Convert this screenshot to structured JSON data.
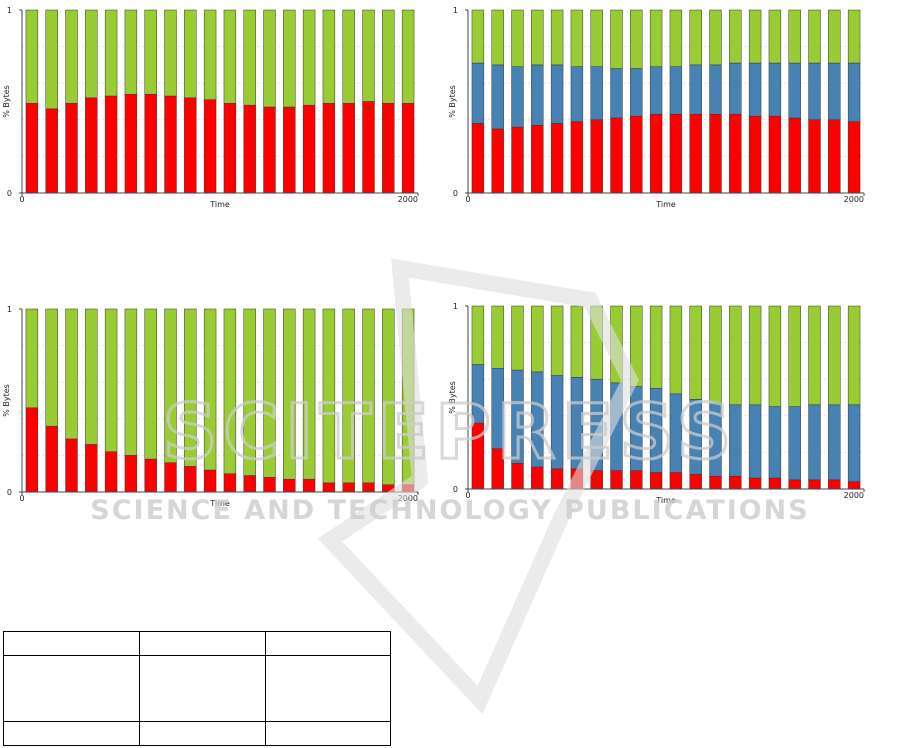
{
  "watermark": {
    "title": "SCITEPRESS",
    "subtitle": "SCIENCE AND TECHNOLOGY PUBLICATIONS"
  },
  "chart_data": [
    {
      "type": "bar",
      "stacked": true,
      "x_label": "Time",
      "y_label": "% Bytes",
      "x": [
        50,
        150,
        250,
        350,
        450,
        550,
        650,
        750,
        850,
        950,
        1050,
        1150,
        1250,
        1350,
        1450,
        1550,
        1650,
        1750,
        1850,
        1950
      ],
      "xlim": [
        0,
        2000
      ],
      "xticks": [
        0,
        2000
      ],
      "ylim": [
        0,
        1
      ],
      "yticks": [
        0,
        1
      ],
      "series": [
        {
          "color": "#ff0000",
          "values": [
            0.49,
            0.46,
            0.49,
            0.52,
            0.53,
            0.54,
            0.54,
            0.53,
            0.52,
            0.51,
            0.49,
            0.48,
            0.47,
            0.47,
            0.48,
            0.49,
            0.49,
            0.5,
            0.49,
            0.49
          ]
        },
        {
          "color": "#99cc33",
          "values": [
            0.51,
            0.54,
            0.51,
            0.48,
            0.47,
            0.46,
            0.46,
            0.47,
            0.48,
            0.49,
            0.51,
            0.52,
            0.53,
            0.53,
            0.52,
            0.51,
            0.51,
            0.5,
            0.51,
            0.51
          ]
        }
      ]
    },
    {
      "type": "bar",
      "stacked": true,
      "x_label": "Time",
      "y_label": "% Bytes",
      "x": [
        50,
        150,
        250,
        350,
        450,
        550,
        650,
        750,
        850,
        950,
        1050,
        1150,
        1250,
        1350,
        1450,
        1550,
        1650,
        1750,
        1850,
        1950
      ],
      "xlim": [
        0,
        2000
      ],
      "xticks": [
        0,
        2000
      ],
      "ylim": [
        0,
        1
      ],
      "yticks": [
        0,
        1
      ],
      "series": [
        {
          "color": "#ff0000",
          "values": [
            0.38,
            0.35,
            0.36,
            0.37,
            0.38,
            0.39,
            0.4,
            0.41,
            0.42,
            0.43,
            0.43,
            0.43,
            0.43,
            0.43,
            0.42,
            0.42,
            0.41,
            0.4,
            0.4,
            0.39
          ]
        },
        {
          "color": "#4682b4",
          "values": [
            0.33,
            0.35,
            0.33,
            0.33,
            0.32,
            0.3,
            0.29,
            0.27,
            0.26,
            0.26,
            0.26,
            0.27,
            0.27,
            0.28,
            0.29,
            0.29,
            0.3,
            0.31,
            0.31,
            0.32
          ]
        },
        {
          "color": "#99cc33",
          "values": [
            0.29,
            0.3,
            0.31,
            0.3,
            0.3,
            0.31,
            0.31,
            0.32,
            0.32,
            0.31,
            0.31,
            0.3,
            0.3,
            0.29,
            0.29,
            0.29,
            0.29,
            0.29,
            0.29,
            0.29
          ]
        }
      ]
    },
    {
      "type": "bar",
      "stacked": true,
      "x_label": "Time",
      "y_label": "% Bytes",
      "x": [
        50,
        150,
        250,
        350,
        450,
        550,
        650,
        750,
        850,
        950,
        1050,
        1150,
        1250,
        1350,
        1450,
        1550,
        1650,
        1750,
        1850,
        1950
      ],
      "xlim": [
        0,
        2000
      ],
      "xticks": [
        0,
        2000
      ],
      "ylim": [
        0,
        1
      ],
      "yticks": [
        0,
        1
      ],
      "series": [
        {
          "color": "#ff0000",
          "values": [
            0.46,
            0.36,
            0.29,
            0.26,
            0.22,
            0.2,
            0.18,
            0.16,
            0.14,
            0.12,
            0.1,
            0.09,
            0.08,
            0.07,
            0.07,
            0.05,
            0.05,
            0.05,
            0.04,
            0.04
          ]
        },
        {
          "color": "#99cc33",
          "values": [
            0.54,
            0.64,
            0.71,
            0.74,
            0.78,
            0.8,
            0.82,
            0.84,
            0.86,
            0.88,
            0.9,
            0.91,
            0.92,
            0.93,
            0.93,
            0.95,
            0.95,
            0.95,
            0.96,
            0.96
          ]
        }
      ]
    },
    {
      "type": "bar",
      "stacked": true,
      "x_label": "Time",
      "y_label": "% Bytes",
      "x": [
        50,
        150,
        250,
        350,
        450,
        550,
        650,
        750,
        850,
        950,
        1050,
        1150,
        1250,
        1350,
        1450,
        1550,
        1650,
        1750,
        1850,
        1950
      ],
      "xlim": [
        0,
        2000
      ],
      "xticks": [
        0,
        2000
      ],
      "ylim": [
        0,
        1
      ],
      "yticks": [
        0,
        1
      ],
      "series": [
        {
          "color": "#ff0000",
          "values": [
            0.36,
            0.22,
            0.14,
            0.12,
            0.11,
            0.11,
            0.1,
            0.1,
            0.1,
            0.09,
            0.09,
            0.08,
            0.07,
            0.07,
            0.06,
            0.06,
            0.05,
            0.05,
            0.05,
            0.04
          ]
        },
        {
          "color": "#4682b4",
          "values": [
            0.32,
            0.44,
            0.51,
            0.52,
            0.51,
            0.5,
            0.5,
            0.48,
            0.46,
            0.46,
            0.43,
            0.41,
            0.4,
            0.39,
            0.4,
            0.39,
            0.4,
            0.41,
            0.41,
            0.42
          ]
        },
        {
          "color": "#99cc33",
          "values": [
            0.32,
            0.34,
            0.35,
            0.36,
            0.38,
            0.39,
            0.4,
            0.42,
            0.44,
            0.45,
            0.48,
            0.51,
            0.53,
            0.54,
            0.54,
            0.55,
            0.55,
            0.54,
            0.54,
            0.54
          ]
        }
      ]
    }
  ]
}
